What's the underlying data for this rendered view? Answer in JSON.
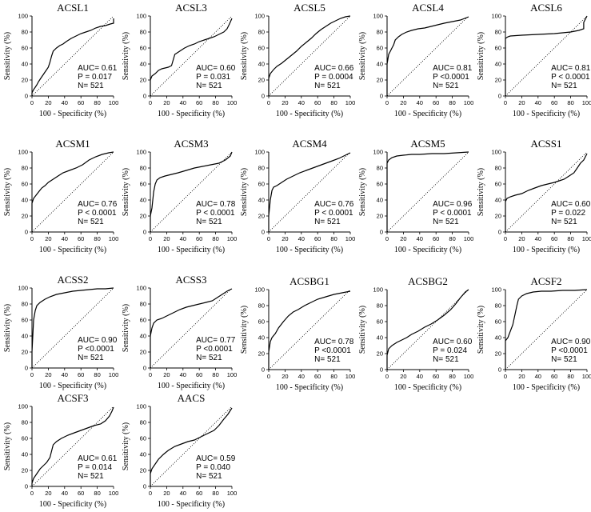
{
  "chart_data": [
    {
      "type": "line",
      "title": "ACSL1",
      "xlabel": "100 - Specificity (%)",
      "ylabel": "Sensitivity (%)",
      "auc": "AUC= 0.61",
      "p": "P = 0.017",
      "n": "N= 521",
      "xlim": [
        0,
        100
      ],
      "ylim": [
        0,
        100
      ],
      "xticks": [
        "0",
        "20",
        "40",
        "60",
        "80",
        "100"
      ],
      "yticks": [
        "0",
        "20",
        "40",
        "60",
        "80",
        "100"
      ],
      "grid": false,
      "x": [
        0,
        0,
        2,
        4,
        6,
        8,
        10,
        12,
        14,
        16,
        18,
        20,
        22,
        24,
        26,
        30,
        34,
        38,
        42,
        48,
        54,
        60,
        66,
        72,
        78,
        84,
        90,
        96,
        100,
        100
      ],
      "y": [
        0,
        4,
        8,
        11,
        14,
        18,
        21,
        24,
        27,
        30,
        33,
        36,
        42,
        50,
        56,
        60,
        63,
        65,
        68,
        72,
        75,
        78,
        80,
        82,
        85,
        87,
        88,
        90,
        91,
        97
      ]
    },
    {
      "type": "line",
      "title": "ACSL3",
      "xlabel": "100 - Specificity (%)",
      "ylabel": "Sensitivity (%)",
      "auc": "AUC= 0.60",
      "p": "P = 0.031",
      "n": "N= 521",
      "xlim": [
        0,
        100
      ],
      "ylim": [
        0,
        100
      ],
      "xticks": [
        "0",
        "20",
        "40",
        "60",
        "80",
        "100"
      ],
      "yticks": [
        "0",
        "20",
        "40",
        "60",
        "80",
        "100"
      ],
      "grid": false,
      "x": [
        0,
        0,
        2,
        6,
        10,
        14,
        18,
        22,
        26,
        30,
        36,
        42,
        48,
        54,
        60,
        66,
        72,
        78,
        84,
        90,
        94,
        97,
        100
      ],
      "y": [
        0,
        20,
        25,
        28,
        32,
        34,
        35,
        36,
        38,
        52,
        56,
        60,
        63,
        65,
        68,
        70,
        72,
        74,
        77,
        80,
        84,
        90,
        97
      ]
    },
    {
      "type": "line",
      "title": "ACSL5",
      "xlabel": "100 - Specificity (%)",
      "ylabel": "Sensitivity (%)",
      "auc": "AUC= 0.66",
      "p": "P = 0.0004",
      "n": "N= 521",
      "xlim": [
        0,
        100
      ],
      "ylim": [
        0,
        100
      ],
      "xticks": [
        "0",
        "20",
        "40",
        "60",
        "80",
        "100"
      ],
      "yticks": [
        "0",
        "20",
        "40",
        "60",
        "80",
        "100"
      ],
      "grid": false,
      "x": [
        0,
        0,
        2,
        6,
        10,
        16,
        22,
        28,
        34,
        40,
        46,
        52,
        58,
        64,
        70,
        76,
        82,
        88,
        94,
        100
      ],
      "y": [
        0,
        22,
        28,
        33,
        37,
        41,
        46,
        51,
        56,
        62,
        67,
        72,
        78,
        83,
        87,
        91,
        94,
        97,
        99,
        100
      ]
    },
    {
      "type": "line",
      "title": "ACSL4",
      "xlabel": "100 - Specificity (%)",
      "ylabel": "Sensitivity (%)",
      "auc": "AUC= 0.81",
      "p": "P <0.0001",
      "n": "N= 521",
      "xlim": [
        0,
        100
      ],
      "ylim": [
        0,
        100
      ],
      "xticks": [
        "0",
        "20",
        "40",
        "60",
        "80",
        "100"
      ],
      "yticks": [
        "0",
        "20",
        "40",
        "60",
        "80",
        "100"
      ],
      "grid": false,
      "x": [
        0,
        0,
        2,
        4,
        6,
        8,
        10,
        14,
        18,
        24,
        30,
        38,
        46,
        54,
        62,
        70,
        80,
        90,
        100
      ],
      "y": [
        0,
        40,
        52,
        56,
        60,
        64,
        70,
        74,
        77,
        80,
        82,
        84,
        85,
        87,
        89,
        91,
        93,
        95,
        99
      ]
    },
    {
      "type": "line",
      "title": "ACSL6",
      "xlabel": "100 - Specificity (%)",
      "ylabel": "Sensitivity (%)",
      "auc": "AUC= 0.81",
      "p": "P < 0.0001",
      "n": "N= 521",
      "xlim": [
        0,
        100
      ],
      "ylim": [
        0,
        100
      ],
      "xticks": [
        "0",
        "20",
        "40",
        "60",
        "80",
        "100"
      ],
      "yticks": [
        "0",
        "20",
        "40",
        "60",
        "80",
        "100"
      ],
      "grid": false,
      "x": [
        0,
        0,
        3,
        6,
        20,
        40,
        60,
        80,
        90,
        96,
        96,
        100
      ],
      "y": [
        0,
        72,
        74,
        75,
        76,
        77,
        78,
        80,
        82,
        84,
        92,
        100
      ]
    },
    {
      "type": "line",
      "title": "ACSM1",
      "xlabel": "100 - Specificity (%)",
      "ylabel": "Sensitivity (%)",
      "auc": "AUC= 0.76",
      "p": "P < 0.0001",
      "n": "N= 521",
      "xlim": [
        0,
        100
      ],
      "ylim": [
        0,
        100
      ],
      "xticks": [
        "0",
        "20",
        "40",
        "60",
        "80",
        "100"
      ],
      "yticks": [
        "0",
        "20",
        "40",
        "60",
        "80",
        "100"
      ],
      "grid": false,
      "x": [
        0,
        0,
        2,
        5,
        8,
        12,
        16,
        20,
        26,
        32,
        38,
        46,
        54,
        62,
        70,
        78,
        86,
        94,
        100
      ],
      "y": [
        0,
        36,
        42,
        46,
        50,
        55,
        58,
        62,
        66,
        70,
        74,
        77,
        80,
        84,
        90,
        94,
        97,
        99,
        100
      ]
    },
    {
      "type": "line",
      "title": "ACSM3",
      "xlabel": "100 - Specificity (%)",
      "ylabel": "Sensitivity (%)",
      "auc": "AUC= 0.78",
      "p": "P < 0.0001",
      "n": "N= 521",
      "xlim": [
        0,
        100
      ],
      "ylim": [
        0,
        100
      ],
      "xticks": [
        "0",
        "20",
        "40",
        "60",
        "80",
        "100"
      ],
      "yticks": [
        "0",
        "20",
        "40",
        "60",
        "80",
        "100"
      ],
      "grid": false,
      "x": [
        0,
        0,
        2,
        4,
        6,
        8,
        12,
        18,
        26,
        34,
        44,
        54,
        64,
        74,
        84,
        92,
        98,
        100
      ],
      "y": [
        0,
        20,
        30,
        50,
        60,
        65,
        68,
        70,
        72,
        74,
        77,
        80,
        82,
        84,
        86,
        90,
        95,
        100
      ]
    },
    {
      "type": "line",
      "title": "ACSM4",
      "xlabel": "100 - Specificity (%)",
      "ylabel": "Sensitivity (%)",
      "auc": "AUC= 0.76",
      "p": "P < 0.0001",
      "n": "N= 521",
      "xlim": [
        0,
        100
      ],
      "ylim": [
        0,
        100
      ],
      "xticks": [
        "0",
        "20",
        "40",
        "60",
        "80",
        "100"
      ],
      "yticks": [
        "0",
        "20",
        "40",
        "60",
        "80",
        "100"
      ],
      "grid": false,
      "x": [
        0,
        0,
        2,
        4,
        6,
        10,
        16,
        22,
        30,
        38,
        46,
        54,
        62,
        70,
        78,
        86,
        94,
        100
      ],
      "y": [
        0,
        20,
        40,
        52,
        56,
        58,
        62,
        66,
        70,
        74,
        77,
        80,
        83,
        86,
        89,
        92,
        96,
        99
      ]
    },
    {
      "type": "line",
      "title": "ACSM5",
      "xlabel": "100 - Specificity (%)",
      "ylabel": "Sensitivity (%)",
      "auc": "AUC= 0.96",
      "p": "P < 0.0001",
      "n": "N= 521",
      "xlim": [
        0,
        100
      ],
      "ylim": [
        0,
        100
      ],
      "xticks": [
        "0",
        "20",
        "40",
        "60",
        "80",
        "100"
      ],
      "yticks": [
        "0",
        "20",
        "40",
        "60",
        "80",
        "100"
      ],
      "grid": false,
      "x": [
        0,
        0,
        2,
        6,
        12,
        20,
        30,
        40,
        55,
        70,
        85,
        100
      ],
      "y": [
        0,
        86,
        90,
        93,
        95,
        96,
        97,
        97,
        98,
        98,
        99,
        100
      ]
    },
    {
      "type": "line",
      "title": "ACSS1",
      "xlabel": "100 - Specificity (%)",
      "ylabel": "Sensitivity (%)",
      "auc": "AUC= 0.60",
      "p": "P = 0.022",
      "n": "N= 521",
      "xlim": [
        0,
        100
      ],
      "ylim": [
        0,
        100
      ],
      "xticks": [
        "0",
        "20",
        "40",
        "60",
        "80",
        "100"
      ],
      "yticks": [
        "0",
        "20",
        "40",
        "60",
        "80",
        "100"
      ],
      "grid": false,
      "x": [
        0,
        0,
        2,
        6,
        12,
        20,
        28,
        36,
        44,
        52,
        60,
        66,
        72,
        78,
        84,
        88,
        92,
        96,
        100
      ],
      "y": [
        0,
        38,
        42,
        44,
        46,
        48,
        52,
        55,
        58,
        60,
        62,
        64,
        66,
        70,
        74,
        80,
        86,
        90,
        98
      ]
    },
    {
      "type": "line",
      "title": "ACSS2",
      "xlabel": "100 - Specificity (%)",
      "ylabel": "Sensitivity (%)",
      "auc": "AUC= 0.90",
      "p": "P <0.0001",
      "n": "N= 521",
      "xlim": [
        0,
        100
      ],
      "ylim": [
        0,
        100
      ],
      "xticks": [
        "0",
        "20",
        "40",
        "60",
        "80",
        "100"
      ],
      "yticks": [
        "0",
        "20",
        "40",
        "60",
        "80",
        "100"
      ],
      "grid": false,
      "x": [
        0,
        0,
        2,
        4,
        6,
        10,
        16,
        22,
        30,
        40,
        50,
        60,
        70,
        80,
        90,
        100
      ],
      "y": [
        0,
        20,
        60,
        72,
        78,
        82,
        86,
        89,
        92,
        94,
        96,
        97,
        98,
        99,
        99,
        100
      ]
    },
    {
      "type": "line",
      "title": "ACSS3",
      "xlabel": "100 - Specificity (%)",
      "ylabel": "Sensitivity (%)",
      "auc": "AUC= 0.77",
      "p": "P <0.0001",
      "n": "N= 521",
      "xlim": [
        0,
        100
      ],
      "ylim": [
        0,
        100
      ],
      "xticks": [
        "0",
        "20",
        "40",
        "60",
        "80",
        "100"
      ],
      "yticks": [
        "0",
        "20",
        "40",
        "60",
        "80",
        "100"
      ],
      "grid": false,
      "x": [
        0,
        0,
        2,
        4,
        8,
        14,
        20,
        28,
        36,
        44,
        52,
        60,
        68,
        76,
        82,
        88,
        94,
        100
      ],
      "y": [
        0,
        40,
        50,
        56,
        60,
        62,
        65,
        69,
        73,
        76,
        78,
        80,
        82,
        84,
        88,
        92,
        96,
        99
      ]
    },
    {
      "type": "line",
      "title": "ACSBG1",
      "xlabel": "100 - Specificity (%)",
      "ylabel": "Sensitivity (%)",
      "auc": "AUC= 0.78",
      "p": "P <0.0001",
      "n": "N= 521",
      "xlim": [
        0,
        100
      ],
      "ylim": [
        0,
        100
      ],
      "xticks": [
        "0",
        "20",
        "40",
        "60",
        "80",
        "100"
      ],
      "yticks": [
        "0",
        "20",
        "40",
        "60",
        "80",
        "100"
      ],
      "grid": false,
      "x": [
        0,
        0,
        2,
        4,
        8,
        12,
        18,
        24,
        30,
        36,
        44,
        52,
        60,
        70,
        80,
        90,
        100
      ],
      "y": [
        0,
        22,
        35,
        40,
        45,
        52,
        60,
        67,
        72,
        75,
        80,
        84,
        88,
        91,
        94,
        96,
        98
      ]
    },
    {
      "type": "line",
      "title": "ACSBG2",
      "xlabel": "100 - Specificity (%)",
      "ylabel": "Sensitivity (%)",
      "auc": "AUC= 0.60",
      "p": "P = 0.024",
      "n": "N= 521",
      "xlim": [
        0,
        100
      ],
      "ylim": [
        0,
        100
      ],
      "xticks": [
        "0",
        "20",
        "40",
        "60",
        "80",
        "100"
      ],
      "yticks": [
        "0",
        "20",
        "40",
        "60",
        "80",
        "100"
      ],
      "grid": false,
      "x": [
        0,
        0,
        2,
        6,
        12,
        18,
        24,
        30,
        38,
        46,
        54,
        62,
        70,
        78,
        84,
        90,
        96,
        100
      ],
      "y": [
        0,
        18,
        26,
        30,
        34,
        37,
        40,
        44,
        48,
        53,
        57,
        62,
        68,
        75,
        82,
        90,
        97,
        100
      ]
    },
    {
      "type": "line",
      "title": "ACSF2",
      "xlabel": "100 - Specificity (%)",
      "ylabel": "Sensitivity (%)",
      "auc": "AUC= 0.90",
      "p": "P <0.0001",
      "n": "N= 521",
      "xlim": [
        0,
        100
      ],
      "ylim": [
        0,
        100
      ],
      "xticks": [
        "0",
        "20",
        "40",
        "60",
        "80",
        "100"
      ],
      "yticks": [
        "0",
        "20",
        "40",
        "60",
        "80",
        "100"
      ],
      "grid": false,
      "x": [
        0,
        0,
        3,
        6,
        9,
        12,
        14,
        16,
        20,
        26,
        34,
        44,
        56,
        70,
        85,
        100
      ],
      "y": [
        0,
        36,
        40,
        48,
        56,
        70,
        80,
        88,
        92,
        95,
        97,
        98,
        98,
        99,
        99,
        100
      ]
    },
    {
      "type": "line",
      "title": "ACSF3",
      "xlabel": "100 - Specificity (%)",
      "ylabel": "Sensitivity (%)",
      "auc": "AUC= 0.61",
      "p": "P = 0.014",
      "n": "N= 521",
      "xlim": [
        0,
        100
      ],
      "ylim": [
        0,
        100
      ],
      "xticks": [
        "0",
        "20",
        "40",
        "60",
        "80",
        "100"
      ],
      "yticks": [
        "0",
        "20",
        "40",
        "60",
        "80",
        "100"
      ],
      "grid": false,
      "x": [
        0,
        0,
        2,
        6,
        10,
        14,
        18,
        22,
        26,
        30,
        36,
        44,
        52,
        60,
        68,
        76,
        84,
        90,
        95,
        98,
        100
      ],
      "y": [
        0,
        4,
        10,
        16,
        22,
        26,
        30,
        36,
        52,
        56,
        60,
        64,
        67,
        70,
        73,
        76,
        78,
        82,
        88,
        94,
        99
      ]
    },
    {
      "type": "line",
      "title": "AACS",
      "xlabel": "100 - Specificity (%)",
      "ylabel": "Sensitivity (%)",
      "auc": "AUC= 0.59",
      "p": "P = 0.040",
      "n": "N= 521",
      "xlim": [
        0,
        100
      ],
      "ylim": [
        0,
        100
      ],
      "xticks": [
        "0",
        "20",
        "40",
        "60",
        "80",
        "100"
      ],
      "yticks": [
        "0",
        "20",
        "40",
        "60",
        "80",
        "100"
      ],
      "grid": false,
      "x": [
        0,
        0,
        2,
        6,
        10,
        16,
        22,
        30,
        38,
        46,
        54,
        62,
        70,
        78,
        84,
        90,
        95,
        100
      ],
      "y": [
        0,
        16,
        22,
        28,
        34,
        40,
        45,
        50,
        53,
        56,
        58,
        62,
        66,
        70,
        76,
        84,
        90,
        98
      ]
    }
  ]
}
